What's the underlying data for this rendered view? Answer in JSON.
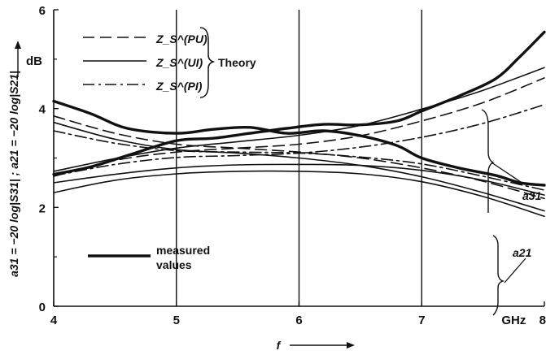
{
  "chart_data": {
    "type": "line",
    "xlabel": "f",
    "ylabel": "a31 = −20 log|S31| ; a21 = −20 log|S21|",
    "xlim": [
      4,
      8
    ],
    "ylim": [
      0,
      6
    ],
    "x_ticks": [
      "4",
      "5",
      "6",
      "7",
      "GHz",
      "8"
    ],
    "y_ticks": [
      "0",
      "2",
      "4",
      "6"
    ],
    "y_unit": "dB",
    "grid_x": [
      5,
      6,
      7
    ],
    "legend": {
      "position": "top-left",
      "entries": [
        {
          "style": "dashed",
          "name": "Z_S^(PU)"
        },
        {
          "style": "solid",
          "name": "Z_S^(UI)"
        },
        {
          "style": "dash-dot",
          "name": "Z_S^(PI)"
        }
      ],
      "group_label": "Theory",
      "measured_label": [
        "measured",
        "values"
      ]
    },
    "annotations": [
      "a31",
      "a21"
    ],
    "series": [
      {
        "style": "dashed",
        "x": [
          4,
          4.5,
          5,
          5.5,
          6,
          6.5,
          7,
          7.5,
          8
        ],
        "y": [
          2.63,
          2.95,
          3.12,
          3.2,
          3.28,
          3.45,
          3.75,
          4.12,
          4.62
        ]
      },
      {
        "style": "solid",
        "x": [
          4,
          4.5,
          5,
          5.5,
          6,
          6.5,
          7,
          7.5,
          8
        ],
        "y": [
          2.73,
          2.99,
          3.2,
          3.33,
          3.46,
          3.66,
          3.99,
          4.37,
          4.83
        ]
      },
      {
        "style": "dash-dot",
        "x": [
          4,
          4.5,
          5,
          5.5,
          6,
          6.5,
          7,
          7.5,
          8
        ],
        "y": [
          2.64,
          2.87,
          3.01,
          3.05,
          3.1,
          3.22,
          3.42,
          3.7,
          4.08
        ]
      },
      {
        "style": "dashed",
        "x": [
          4,
          4.5,
          5,
          5.5,
          6,
          6.5,
          7,
          7.5,
          8
        ],
        "y": [
          3.85,
          3.5,
          3.28,
          3.2,
          3.12,
          3.0,
          2.8,
          2.53,
          2.18
        ]
      },
      {
        "style": "solid",
        "x": [
          4,
          4.5,
          5,
          5.5,
          6,
          6.5,
          7,
          7.5,
          8
        ],
        "y": [
          3.72,
          3.38,
          3.17,
          3.1,
          3.0,
          2.85,
          2.62,
          2.3,
          1.93
        ]
      },
      {
        "style": "dash-dot",
        "x": [
          4,
          4.5,
          5,
          5.5,
          6,
          6.5,
          7,
          7.5,
          8
        ],
        "y": [
          3.55,
          3.3,
          3.15,
          3.12,
          3.1,
          3.02,
          2.88,
          2.63,
          2.35
        ]
      },
      {
        "style": "solid",
        "x": [
          4,
          4.5,
          5,
          5.5,
          6,
          6.5,
          7,
          7.5,
          8
        ],
        "y": [
          2.5,
          2.67,
          2.8,
          2.86,
          2.87,
          2.85,
          2.75,
          2.55,
          2.25
        ]
      },
      {
        "style": "solid",
        "x": [
          4,
          4.5,
          5,
          5.5,
          6,
          6.5,
          7,
          7.5,
          8
        ],
        "y": [
          2.3,
          2.55,
          2.68,
          2.73,
          2.73,
          2.68,
          2.52,
          2.22,
          1.82
        ]
      },
      {
        "style": "thick",
        "x": [
          4,
          4.3,
          4.6,
          5,
          5.3,
          5.6,
          5.9,
          6.2,
          6.5,
          6.8,
          7,
          7.3,
          7.6,
          7.8,
          8
        ],
        "y": [
          2.67,
          2.82,
          3.05,
          3.35,
          3.4,
          3.5,
          3.6,
          3.68,
          3.67,
          3.75,
          3.95,
          4.25,
          4.6,
          5.05,
          5.55
        ]
      },
      {
        "style": "thick",
        "x": [
          4,
          4.3,
          4.6,
          5,
          5.3,
          5.6,
          5.9,
          6.2,
          6.5,
          6.8,
          7,
          7.3,
          7.6,
          7.8,
          8
        ],
        "y": [
          4.15,
          3.9,
          3.6,
          3.5,
          3.58,
          3.62,
          3.5,
          3.55,
          3.45,
          3.25,
          3.0,
          2.8,
          2.65,
          2.5,
          2.45
        ]
      }
    ]
  }
}
